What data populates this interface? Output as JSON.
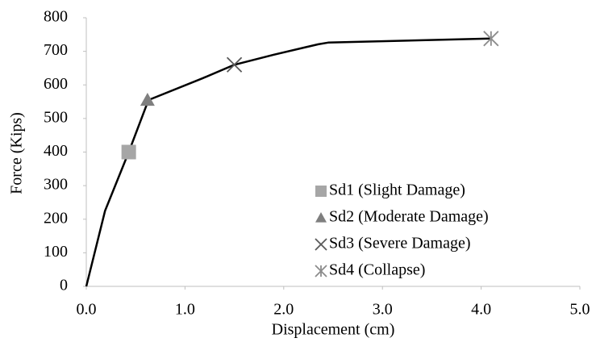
{
  "chart_data": {
    "type": "line",
    "x_label": "Displacement (cm)",
    "y_label": "Force (Kips)",
    "xlim": [
      0,
      5
    ],
    "ylim": [
      0,
      800
    ],
    "xticks": [
      {
        "value": 0,
        "label": "0.0"
      },
      {
        "value": 1,
        "label": "1.0"
      },
      {
        "value": 2,
        "label": "2.0"
      },
      {
        "value": 3,
        "label": "3.0"
      },
      {
        "value": 4,
        "label": "4.0"
      },
      {
        "value": 5,
        "label": "5.0"
      }
    ],
    "yticks": [
      0,
      100,
      200,
      300,
      400,
      500,
      600,
      700,
      800
    ],
    "grid": false,
    "legend_position": "right",
    "curve": {
      "color": "#000000",
      "x": [
        0,
        0.19,
        0.43,
        0.63,
        1.18,
        1.5,
        1.9,
        2.35,
        2.45,
        4.1
      ],
      "values": [
        0,
        225,
        400,
        555,
        620,
        660,
        690,
        721,
        726,
        738
      ]
    },
    "series": [
      {
        "name": "Sd1 (Slight Damage)",
        "color": "#a6a6a6",
        "marker": "square",
        "x": [
          0.43
        ],
        "values": [
          400
        ]
      },
      {
        "name": "Sd2 (Moderate Damage)",
        "color": "#7f7f7f",
        "marker": "triangle",
        "x": [
          0.62
        ],
        "values": [
          555
        ]
      },
      {
        "name": "Sd3 (Severe Damage)",
        "color": "#595959",
        "marker": "x",
        "x": [
          1.5
        ],
        "values": [
          660
        ]
      },
      {
        "name": "Sd4 (Collapse)",
        "color": "#8c8c8c",
        "marker": "asterisk",
        "x": [
          4.1
        ],
        "values": [
          738
        ]
      }
    ]
  }
}
